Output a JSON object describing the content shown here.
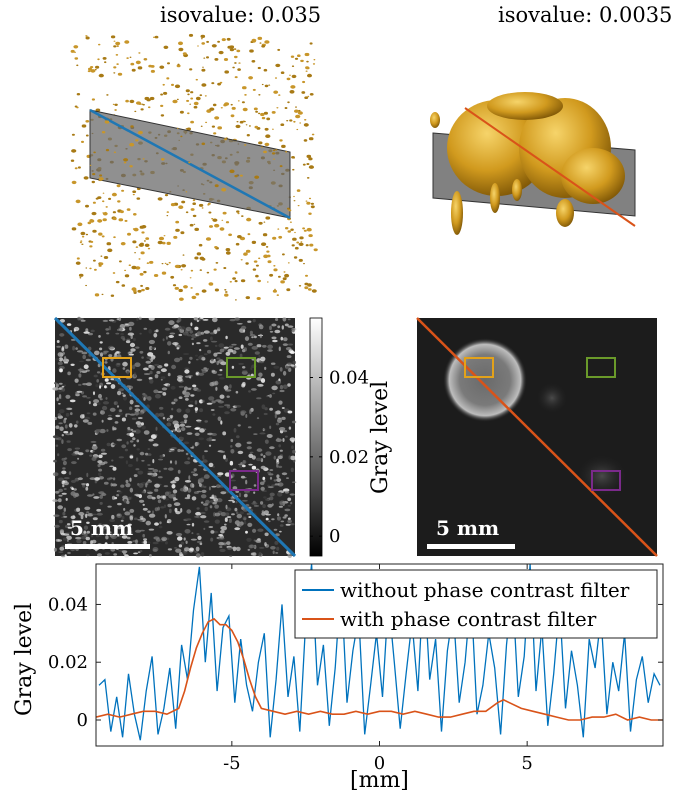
{
  "top_panels": {
    "left_title": "isovalue: 0.035",
    "right_title": "isovalue: 0.0035"
  },
  "slices": {
    "left_scalebar": "5 mm",
    "right_scalebar": "5 mm",
    "roi_colors": {
      "orange": "#e3a21a",
      "green": "#6a9a2a",
      "purple": "#7a2a8a"
    },
    "line_colors": {
      "left": "#1f77b4",
      "right": "#d95319"
    }
  },
  "colorbar": {
    "label": "Gray level",
    "ticks": [
      "0.04",
      "0.02",
      "0"
    ],
    "tick_values": [
      0.04,
      0.02,
      0
    ],
    "range": [
      -0.005,
      0.055
    ]
  },
  "chart_data": {
    "type": "line",
    "xlabel": "[mm]",
    "ylabel": "Gray level",
    "xlim": [
      -9.6,
      9.6
    ],
    "ylim": [
      -0.009,
      0.054
    ],
    "x_ticks": [
      "-5",
      "0",
      "5"
    ],
    "x_tick_values": [
      -5,
      0,
      5
    ],
    "y_ticks": [
      "0.04",
      "0.02",
      "0"
    ],
    "y_tick_values": [
      0.04,
      0.02,
      0
    ],
    "legend_position": "top-right",
    "series": [
      {
        "name": "without phase contrast filter",
        "color": "#0072bd",
        "x": [
          -9.5,
          -9.3,
          -9.1,
          -8.9,
          -8.7,
          -8.5,
          -8.3,
          -8.1,
          -7.9,
          -7.7,
          -7.5,
          -7.3,
          -7.1,
          -6.9,
          -6.7,
          -6.5,
          -6.3,
          -6.1,
          -5.9,
          -5.7,
          -5.5,
          -5.3,
          -5.1,
          -4.9,
          -4.7,
          -4.5,
          -4.3,
          -4.1,
          -3.9,
          -3.7,
          -3.5,
          -3.3,
          -3.1,
          -2.9,
          -2.7,
          -2.5,
          -2.3,
          -2.1,
          -1.9,
          -1.7,
          -1.5,
          -1.3,
          -1.1,
          -0.9,
          -0.7,
          -0.5,
          -0.3,
          -0.1,
          0.1,
          0.3,
          0.5,
          0.7,
          0.9,
          1.1,
          1.3,
          1.5,
          1.7,
          1.9,
          2.1,
          2.3,
          2.5,
          2.7,
          2.9,
          3.1,
          3.3,
          3.5,
          3.7,
          3.9,
          4.1,
          4.3,
          4.5,
          4.7,
          4.9,
          5.1,
          5.3,
          5.5,
          5.7,
          5.9,
          6.1,
          6.3,
          6.5,
          6.7,
          6.9,
          7.1,
          7.3,
          7.5,
          7.7,
          7.9,
          8.1,
          8.3,
          8.5,
          8.7,
          8.9,
          9.1,
          9.3,
          9.5
        ],
        "values": [
          0.012,
          0.014,
          -0.004,
          0.008,
          -0.006,
          0.016,
          0.002,
          -0.007,
          0.01,
          0.022,
          -0.005,
          0.004,
          0.018,
          -0.003,
          0.026,
          0.014,
          0.038,
          0.053,
          0.02,
          0.044,
          0.01,
          0.032,
          0.036,
          0.006,
          0.028,
          0.012,
          0.003,
          0.02,
          0.03,
          -0.006,
          0.014,
          0.04,
          0.008,
          0.022,
          -0.004,
          0.034,
          0.054,
          0.012,
          0.026,
          -0.002,
          0.018,
          0.048,
          0.006,
          0.024,
          0.036,
          -0.005,
          0.012,
          0.03,
          0.008,
          0.042,
          0.02,
          -0.003,
          0.016,
          0.034,
          0.01,
          0.05,
          0.014,
          0.028,
          -0.004,
          0.024,
          0.038,
          0.006,
          0.02,
          0.044,
          0.002,
          0.012,
          0.03,
          0.018,
          -0.005,
          0.026,
          0.046,
          0.008,
          0.022,
          0.054,
          0.01,
          0.032,
          -0.002,
          0.016,
          0.04,
          0.004,
          0.024,
          0.012,
          -0.006,
          0.028,
          0.018,
          0.036,
          0.002,
          0.02,
          0.01,
          0.03,
          -0.004,
          0.014,
          0.022,
          0.006,
          0.016,
          0.012
        ]
      },
      {
        "name": "with phase contrast filter",
        "color": "#d95319",
        "x": [
          -9.6,
          -9.2,
          -8.8,
          -8.4,
          -8.0,
          -7.6,
          -7.2,
          -6.8,
          -6.6,
          -6.4,
          -6.2,
          -6.0,
          -5.8,
          -5.6,
          -5.4,
          -5.2,
          -5.0,
          -4.8,
          -4.6,
          -4.4,
          -4.2,
          -4.0,
          -3.6,
          -3.2,
          -2.8,
          -2.4,
          -2.0,
          -1.6,
          -1.2,
          -0.8,
          -0.4,
          0.0,
          0.4,
          0.8,
          1.2,
          1.6,
          2.0,
          2.4,
          2.8,
          3.2,
          3.6,
          4.0,
          4.2,
          4.4,
          4.8,
          5.2,
          5.6,
          6.0,
          6.4,
          6.8,
          7.2,
          7.6,
          8.0,
          8.4,
          8.8,
          9.2,
          9.6
        ],
        "values": [
          0.001,
          0.002,
          0.001,
          0.002,
          0.003,
          0.003,
          0.002,
          0.004,
          0.01,
          0.018,
          0.025,
          0.03,
          0.034,
          0.035,
          0.033,
          0.033,
          0.031,
          0.027,
          0.021,
          0.014,
          0.008,
          0.004,
          0.003,
          0.002,
          0.003,
          0.002,
          0.003,
          0.002,
          0.002,
          0.003,
          0.002,
          0.003,
          0.003,
          0.002,
          0.003,
          0.002,
          0.001,
          0.001,
          0.002,
          0.003,
          0.003,
          0.006,
          0.007,
          0.006,
          0.004,
          0.003,
          0.002,
          0.001,
          0.0,
          0.0,
          0.001,
          0.001,
          0.002,
          0.0,
          0.001,
          0.0,
          0.0
        ]
      }
    ]
  }
}
